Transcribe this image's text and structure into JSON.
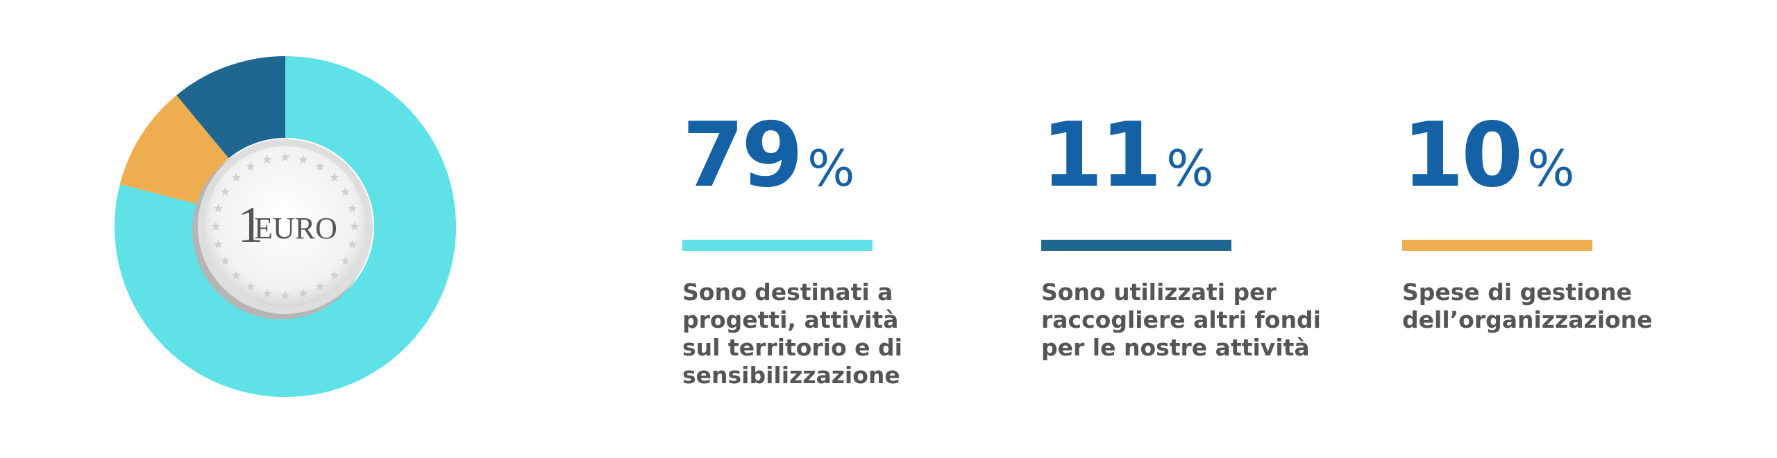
{
  "chart_data": {
    "type": "donut",
    "center_label": {
      "number": "1",
      "text": "EURO"
    },
    "values": [
      79,
      11,
      10
    ],
    "unit": "%",
    "colors": [
      "#5ee1e7",
      "#1f6791",
      "#eeae50"
    ],
    "categories": [
      "Sono destinati a\nprogetti, attività\nsul territorio e di\nsensibilizzazione",
      "Sono utilizzati per\nraccogliere altri fondi\nper le nostre attività",
      "Spese di gestione\ndell’organizzazione"
    ]
  }
}
